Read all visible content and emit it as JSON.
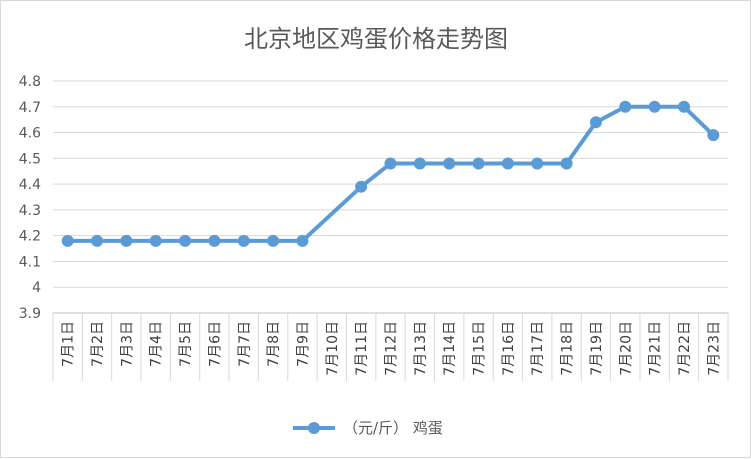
{
  "chart_data": {
    "type": "line",
    "title": "北京地区鸡蛋价格走势图",
    "categories": [
      "7月1日",
      "7月2日",
      "7月3日",
      "7月4日",
      "7月5日",
      "7月6日",
      "7月7日",
      "7月8日",
      "7月9日",
      "7月10日",
      "7月11日",
      "7月12日",
      "7月13日",
      "7月14日",
      "7月15日",
      "7月16日",
      "7月17日",
      "7月18日",
      "7月19日",
      "7月20日",
      "7月21日",
      "7月22日",
      "7月23日"
    ],
    "series": [
      {
        "name": "（元/斤） 鸡蛋",
        "values": [
          4.18,
          4.18,
          4.18,
          4.18,
          4.18,
          4.18,
          4.18,
          4.18,
          4.18,
          null,
          4.39,
          4.48,
          4.48,
          4.48,
          4.48,
          4.48,
          4.48,
          4.48,
          4.64,
          4.7,
          4.7,
          4.7,
          4.59
        ],
        "color": "#5b9bd5"
      }
    ],
    "ylim": [
      3.9,
      4.8
    ],
    "yticks": [
      "3.9",
      "4",
      "4.1",
      "4.2",
      "4.3",
      "4.4",
      "4.5",
      "4.6",
      "4.7",
      "4.8"
    ],
    "grid": true,
    "legend": "bottom"
  }
}
